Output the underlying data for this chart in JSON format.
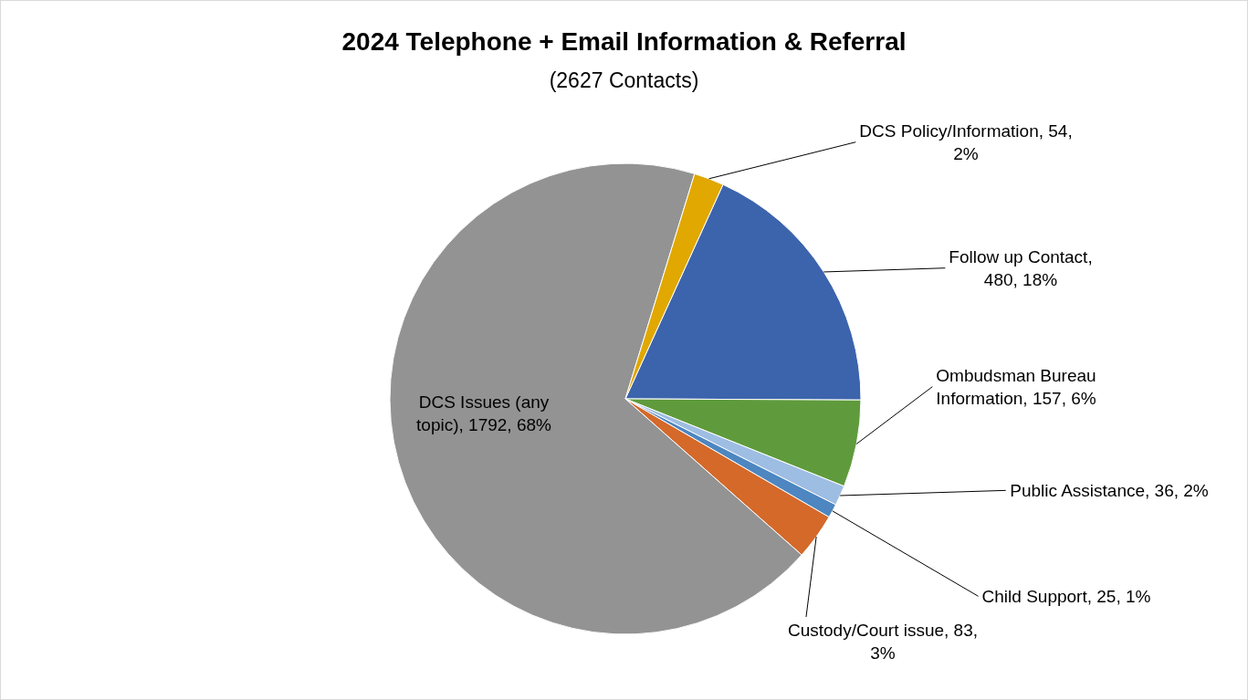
{
  "chart_data": {
    "type": "pie",
    "title": "2024 Telephone + Email Information & Referral",
    "subtitle": "(2627 Contacts)",
    "categories": [
      "Follow up Contact",
      "Ombudsman Bureau Information",
      "Public Assistance",
      "Child Support",
      "Custody/Court issue",
      "DCS Issues (any topic)",
      "DCS Policy/Information"
    ],
    "values": [
      480,
      157,
      36,
      25,
      83,
      1792,
      54
    ],
    "value_labels": [
      ", 480, 18%",
      ", 157, 6%",
      ", 36, 2%",
      ", 25, 1%",
      ", 83, 3%",
      ", 1792, 68%",
      ", 54, 2%"
    ],
    "colors": [
      "#3c64ac",
      "#5f9b3c",
      "#9dbde3",
      "#4d86c0",
      "#d4692a",
      "#939393",
      "#e0a800"
    ]
  }
}
